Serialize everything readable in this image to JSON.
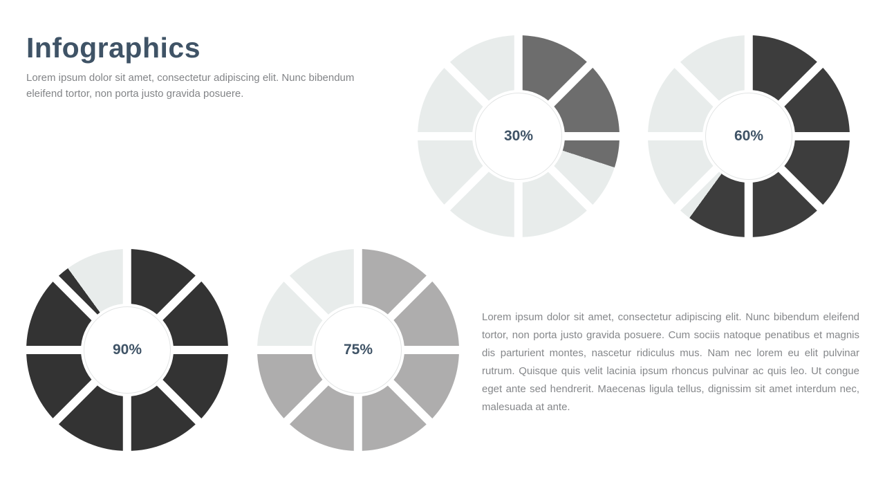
{
  "header": {
    "title": "Infographics",
    "subtitle": "Lorem ipsum dolor sit amet, consectetur adipiscing elit. Nunc bibendum eleifend tortor, non porta justo gravida posuere.",
    "accent_color": "#3f5366"
  },
  "body_text": "Lorem ipsum dolor sit amet, consectetur adipiscing elit. Nunc bibendum eleifend tortor, non porta justo gravida posuere. Cum sociis natoque penatibus et magnis dis parturient montes, nascetur ridiculus mus. Nam nec lorem eu elit pulvinar rutrum. Quisque quis velit lacinia ipsum rhoncus pulvinar ac quis leo. Ut congue eget ante sed hendrerit. Maecenas ligula tellus, dignissim sit amet interdum nec, malesuada at ante.",
  "chart_data": [
    {
      "type": "pie",
      "title": "Progress wheel 30%",
      "label": "30%",
      "value": 30,
      "segments": 8,
      "fill_color": "#6d6d6d",
      "empty_color": "#e8eceb",
      "label_color": "#3f5366"
    },
    {
      "type": "pie",
      "title": "Progress wheel 60%",
      "label": "60%",
      "value": 60,
      "segments": 8,
      "fill_color": "#3d3d3d",
      "empty_color": "#e8eceb",
      "label_color": "#3f5366"
    },
    {
      "type": "pie",
      "title": "Progress wheel 90%",
      "label": "90%",
      "value": 90,
      "segments": 8,
      "fill_color": "#333333",
      "empty_color": "#e8eceb",
      "label_color": "#3f5366"
    },
    {
      "type": "pie",
      "title": "Progress wheel 75%",
      "label": "75%",
      "value": 75,
      "segments": 8,
      "fill_color": "#aeadad",
      "empty_color": "#e8eceb",
      "label_color": "#3f5366"
    }
  ]
}
